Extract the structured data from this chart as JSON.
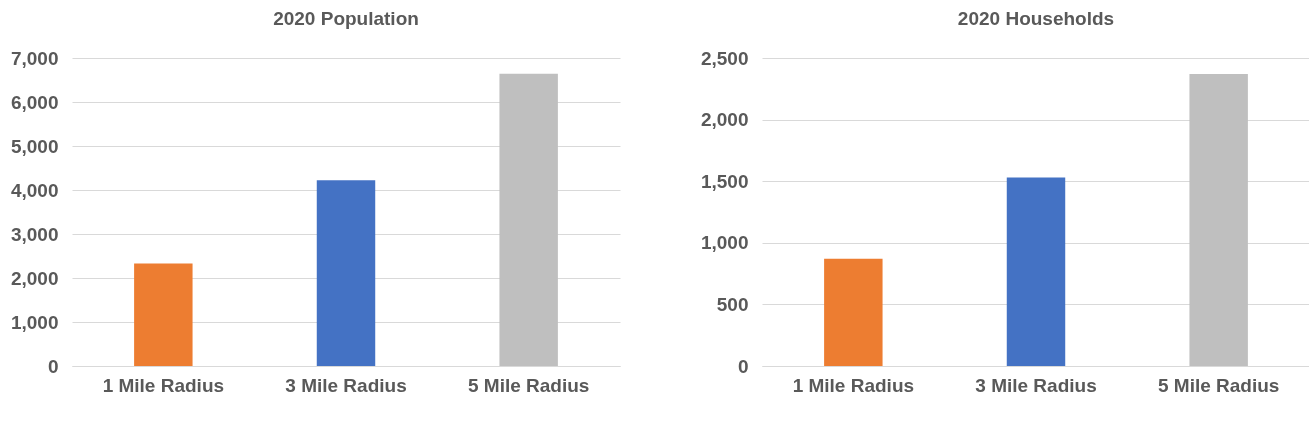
{
  "chart_data": [
    {
      "type": "bar",
      "title": "2020 Population",
      "categories": [
        "1 Mile Radius",
        "3 Mile Radius",
        "5 Mile Radius"
      ],
      "values": [
        2330,
        4220,
        6640
      ],
      "colors": [
        "#ed7d31",
        "#4472c4",
        "#bfbfbf"
      ],
      "ylim": [
        0,
        7000
      ],
      "yticks": [
        {
          "value": 0,
          "label": "0"
        },
        {
          "value": 1000,
          "label": "1,000"
        },
        {
          "value": 2000,
          "label": "2,000"
        },
        {
          "value": 3000,
          "label": "3,000"
        },
        {
          "value": 4000,
          "label": "4,000"
        },
        {
          "value": 5000,
          "label": "5,000"
        },
        {
          "value": 6000,
          "label": "6,000"
        },
        {
          "value": 7000,
          "label": "7,000"
        }
      ],
      "grid": "y"
    },
    {
      "type": "bar",
      "title": "2020 Households",
      "categories": [
        "1 Mile Radius",
        "3 Mile Radius",
        "5 Mile Radius"
      ],
      "values": [
        870,
        1530,
        2370
      ],
      "colors": [
        "#ed7d31",
        "#4472c4",
        "#bfbfbf"
      ],
      "ylim": [
        0,
        2500
      ],
      "yticks": [
        {
          "value": 0,
          "label": "0"
        },
        {
          "value": 500,
          "label": "500"
        },
        {
          "value": 1000,
          "label": "1,000"
        },
        {
          "value": 1500,
          "label": "1,500"
        },
        {
          "value": 2000,
          "label": "2,000"
        },
        {
          "value": 2500,
          "label": "2,500"
        }
      ],
      "grid": "y"
    }
  ]
}
